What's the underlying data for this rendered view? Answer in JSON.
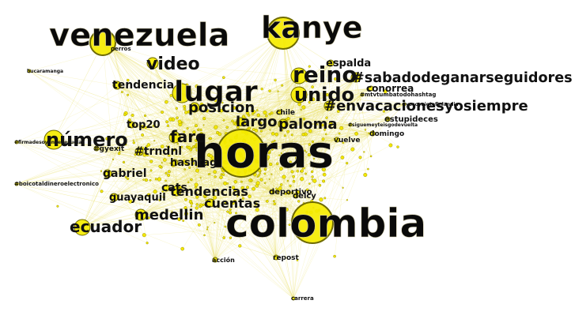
{
  "graph": {
    "terms": [
      {
        "label": "venezuela",
        "weight": 10
      },
      {
        "label": "kanye",
        "weight": 9
      },
      {
        "label": "lugar",
        "weight": 10
      },
      {
        "label": "horas",
        "weight": 18
      },
      {
        "label": "colombia",
        "weight": 16
      },
      {
        "label": "reino",
        "weight": 7
      },
      {
        "label": "unido",
        "weight": 7
      },
      {
        "label": "#sabadodeganarseguidores",
        "weight": 6
      },
      {
        "label": "video",
        "weight": 5
      },
      {
        "label": "número",
        "weight": 6
      },
      {
        "label": "posicion",
        "weight": 4
      },
      {
        "label": "farc",
        "weight": 5
      },
      {
        "label": "largo",
        "weight": 4
      },
      {
        "label": "paloma",
        "weight": 5
      },
      {
        "label": "#envacacionesyosiempre",
        "weight": 5
      },
      {
        "label": "ecuador",
        "weight": 5
      },
      {
        "label": "medellin",
        "weight": 4
      },
      {
        "label": "cuentas",
        "weight": 4
      },
      {
        "label": "tendencias",
        "weight": 4
      },
      {
        "label": "hashtag",
        "weight": 3
      },
      {
        "label": "gabriel",
        "weight": 3
      },
      {
        "label": "guayaquil",
        "weight": 3
      },
      {
        "label": "tendencia",
        "weight": 3
      },
      {
        "label": "#trndnl",
        "weight": 3
      },
      {
        "label": "top20",
        "weight": 3
      },
      {
        "label": "espalda",
        "weight": 2
      },
      {
        "label": "conorrea",
        "weight": 2
      },
      {
        "label": "estupideces",
        "weight": 2
      },
      {
        "label": "deportivo",
        "weight": 2
      },
      {
        "label": "#gyexit",
        "weight": 2
      },
      {
        "label": "#firmadesoyenvenezuela",
        "weight": 1
      },
      {
        "label": "#boicotaldineroelectronico",
        "weight": 1
      },
      {
        "label": "#mtvtumbatodohashtag",
        "weight": 1
      },
      {
        "label": "#yosoyaigtofinlandia",
        "weight": 1
      },
      {
        "label": "#siguemeyteisgodevuelta",
        "weight": 1
      },
      {
        "label": "domingo",
        "weight": 2
      },
      {
        "label": "vuelve",
        "weight": 2
      },
      {
        "label": "chile",
        "weight": 2
      },
      {
        "label": "perros",
        "weight": 1
      },
      {
        "label": "bucaramanga",
        "weight": 1
      },
      {
        "label": "repost",
        "weight": 1
      },
      {
        "label": "acción",
        "weight": 1
      },
      {
        "label": "carrera",
        "weight": 1
      },
      {
        "label": "delcy",
        "weight": 2
      },
      {
        "label": "cats",
        "weight": 2
      }
    ]
  }
}
